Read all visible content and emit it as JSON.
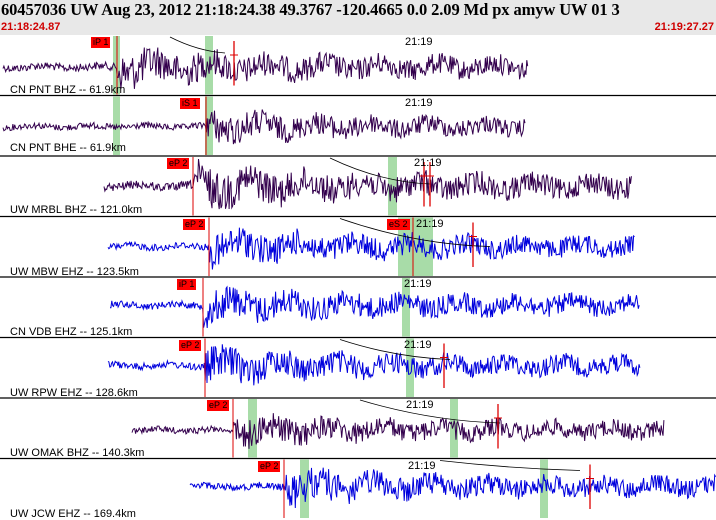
{
  "header": {
    "title": "60457036 UW Aug 23, 2012 21:18:24.38    49.3767 -120.4665  0.0 2.09 Md px amyw UW 01   3",
    "start_time": "21:18:24.87",
    "end_time": "21:19:27.27",
    "background_color": "#e8e8e8",
    "time_color": "#d00000"
  },
  "time_mark": "21:19",
  "traces": [
    {
      "station": "CN PNT BHZ -- 61.9km",
      "color": "#33004d",
      "picks": [
        {
          "label": "iP 1"
        }
      ],
      "amp_decay": true
    },
    {
      "station": "CN PNT BHE -- 61.9km",
      "color": "#33004d",
      "picks": [
        {
          "label": "iS 1"
        }
      ]
    },
    {
      "station": "UW MRBL BHZ -- 121.0km",
      "color": "#33004d",
      "picks": [
        {
          "label": "eP 2"
        }
      ]
    },
    {
      "station": "UW MBW EHZ -- 123.5km",
      "color": "#0000dd",
      "picks": [
        {
          "label": "eP 2"
        },
        {
          "label": "eS 2"
        }
      ]
    },
    {
      "station": "CN VDB EHZ -- 125.1km",
      "color": "#0000dd",
      "picks": [
        {
          "label": "iP 1"
        }
      ]
    },
    {
      "station": "UW RPW EHZ -- 128.6km",
      "color": "#0000dd",
      "picks": [
        {
          "label": "eP 2"
        }
      ]
    },
    {
      "station": "UW OMAK BHZ -- 140.3km",
      "color": "#33004d",
      "picks": [
        {
          "label": "eP 2"
        }
      ]
    },
    {
      "station": "UW JCW EHZ -- 169.4km",
      "color": "#0000dd",
      "picks": [
        {
          "label": "eP 2"
        }
      ]
    }
  ],
  "colors": {
    "pick_flag": "#ff0000",
    "window_band": "#a8dca8",
    "theoretical_line": "#000000"
  }
}
